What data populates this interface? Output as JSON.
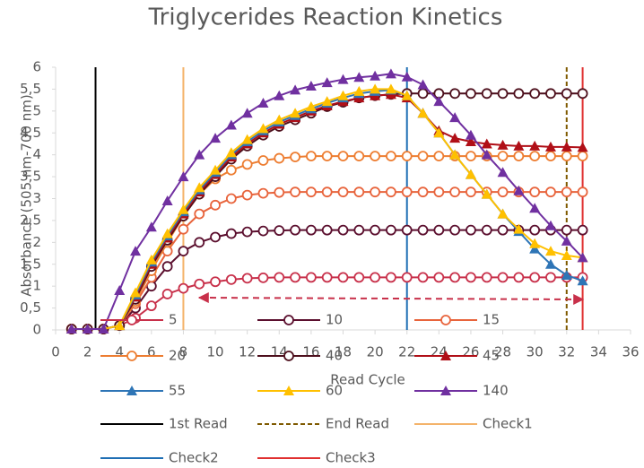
{
  "chart_data": {
    "type": "line",
    "title": "Triglycerides Reaction Kinetics",
    "x_label": "Read Cycle",
    "y_label": "Absorbance (505 nm-700 nm)",
    "xlim": [
      0,
      36
    ],
    "xticks": [
      0,
      2,
      4,
      6,
      8,
      10,
      12,
      14,
      16,
      18,
      20,
      22,
      24,
      26,
      28,
      30,
      32,
      34,
      36
    ],
    "ylim": [
      0,
      6
    ],
    "yticks": [
      0,
      {
        "value": 0.5,
        "label": "0,5"
      },
      1,
      {
        "value": 1.5,
        "label": "1,5"
      },
      2,
      {
        "value": 2.5,
        "label": "2,5"
      },
      3,
      {
        "value": 3.5,
        "label": "3,5"
      },
      4,
      {
        "value": 4.5,
        "label": "4,5"
      },
      5,
      {
        "value": 5.5,
        "label": "5,5"
      },
      6
    ],
    "grid": false,
    "x": [
      1,
      2,
      3,
      4,
      5,
      6,
      7,
      8,
      9,
      10,
      11,
      12,
      13,
      14,
      15,
      16,
      17,
      18,
      19,
      20,
      21,
      22,
      23,
      24,
      25,
      26,
      27,
      28,
      29,
      30,
      31,
      32,
      33
    ],
    "series": [
      {
        "name": "5",
        "color": "#c8304a",
        "marker": "circle",
        "values": [
          0.02,
          0.02,
          0.02,
          0.1,
          0.27,
          0.55,
          0.82,
          0.95,
          1.05,
          1.1,
          1.15,
          1.18,
          1.19,
          1.2,
          1.2,
          1.2,
          1.2,
          1.2,
          1.2,
          1.2,
          1.2,
          1.2,
          1.2,
          1.2,
          1.2,
          1.2,
          1.2,
          1.2,
          1.2,
          1.2,
          1.2,
          1.2,
          1.2
        ]
      },
      {
        "name": "10",
        "color": "#5b0f2e",
        "marker": "circle",
        "values": [
          0.02,
          0.02,
          0.02,
          0.1,
          0.5,
          1.0,
          1.45,
          1.8,
          2.0,
          2.12,
          2.2,
          2.24,
          2.26,
          2.27,
          2.28,
          2.28,
          2.28,
          2.28,
          2.28,
          2.28,
          2.28,
          2.28,
          2.28,
          2.28,
          2.28,
          2.28,
          2.28,
          2.28,
          2.28,
          2.28,
          2.28,
          2.28,
          2.28
        ]
      },
      {
        "name": "15",
        "color": "#e8643c",
        "marker": "circle",
        "values": [
          0.02,
          0.02,
          0.02,
          0.1,
          0.6,
          1.2,
          1.8,
          2.3,
          2.65,
          2.85,
          3.0,
          3.08,
          3.12,
          3.14,
          3.15,
          3.15,
          3.15,
          3.15,
          3.15,
          3.15,
          3.15,
          3.15,
          3.15,
          3.15,
          3.15,
          3.15,
          3.15,
          3.15,
          3.15,
          3.15,
          3.15,
          3.15,
          3.15
        ]
      },
      {
        "name": "20",
        "color": "#ed7d31",
        "marker": "circle",
        "values": [
          0.02,
          0.02,
          0.02,
          0.1,
          0.65,
          1.35,
          2.0,
          2.6,
          3.1,
          3.45,
          3.65,
          3.78,
          3.87,
          3.92,
          3.95,
          3.97,
          3.97,
          3.97,
          3.97,
          3.97,
          3.97,
          3.97,
          3.97,
          3.97,
          3.97,
          3.97,
          3.97,
          3.97,
          3.97,
          3.97,
          3.97,
          3.97,
          3.97
        ]
      },
      {
        "name": "40",
        "color": "#4d0f1c",
        "marker": "circle",
        "values": [
          0.02,
          0.02,
          0.02,
          0.1,
          0.7,
          1.45,
          2.05,
          2.6,
          3.1,
          3.5,
          3.9,
          4.2,
          4.45,
          4.65,
          4.8,
          4.95,
          5.1,
          5.2,
          5.3,
          5.35,
          5.38,
          5.4,
          5.4,
          5.4,
          5.4,
          5.4,
          5.4,
          5.4,
          5.4,
          5.4,
          5.4,
          5.4,
          5.4
        ]
      },
      {
        "name": "45",
        "color": "#b00f17",
        "marker": "triangle",
        "values": [
          0.02,
          0.02,
          0.02,
          0.1,
          0.75,
          1.5,
          2.1,
          2.65,
          3.15,
          3.55,
          3.95,
          4.25,
          4.5,
          4.7,
          4.85,
          5.0,
          5.12,
          5.22,
          5.3,
          5.35,
          5.38,
          5.3,
          4.95,
          4.55,
          4.38,
          4.3,
          4.25,
          4.22,
          4.2,
          4.2,
          4.18,
          4.18,
          4.17
        ]
      },
      {
        "name": "55",
        "color": "#2e75b6",
        "marker": "triangle",
        "values": [
          0.02,
          0.02,
          0.02,
          0.1,
          0.8,
          1.55,
          2.15,
          2.7,
          3.2,
          3.6,
          4.0,
          4.3,
          4.55,
          4.75,
          4.9,
          5.05,
          5.18,
          5.3,
          5.4,
          5.45,
          5.48,
          5.35,
          4.95,
          4.5,
          4.0,
          3.55,
          3.1,
          2.65,
          2.25,
          1.85,
          1.5,
          1.25,
          1.12
        ]
      },
      {
        "name": "60",
        "color": "#ffc000",
        "marker": "triangle",
        "values": [
          0.02,
          0.02,
          0.02,
          0.1,
          0.85,
          1.6,
          2.2,
          2.75,
          3.25,
          3.65,
          4.05,
          4.35,
          4.6,
          4.8,
          4.95,
          5.1,
          5.22,
          5.35,
          5.45,
          5.5,
          5.5,
          5.35,
          4.95,
          4.5,
          4.0,
          3.55,
          3.1,
          2.65,
          2.3,
          1.97,
          1.8,
          1.7,
          1.65
        ]
      },
      {
        "name": "140",
        "color": "#7030a0",
        "marker": "triangle",
        "values": [
          0.02,
          0.02,
          0.02,
          0.9,
          1.8,
          2.35,
          2.95,
          3.5,
          4.0,
          4.38,
          4.68,
          4.95,
          5.18,
          5.35,
          5.48,
          5.57,
          5.65,
          5.72,
          5.77,
          5.8,
          5.85,
          5.78,
          5.6,
          5.22,
          4.85,
          4.45,
          4.0,
          3.6,
          3.18,
          2.78,
          2.38,
          2.03,
          1.65
        ]
      }
    ],
    "vlines": [
      {
        "name": "1st Read",
        "color": "#000000",
        "dashed": false,
        "x": 2.5
      },
      {
        "name": "End Read",
        "color": "#7f5a00",
        "dashed": true,
        "x": 32
      },
      {
        "name": "Check1",
        "color": "#f4b36a",
        "dashed": false,
        "x": 8
      },
      {
        "name": "Check2",
        "color": "#1f6fb4",
        "dashed": false,
        "x": 22
      },
      {
        "name": "Check3",
        "color": "#e03030",
        "dashed": false,
        "x": 33
      }
    ]
  }
}
